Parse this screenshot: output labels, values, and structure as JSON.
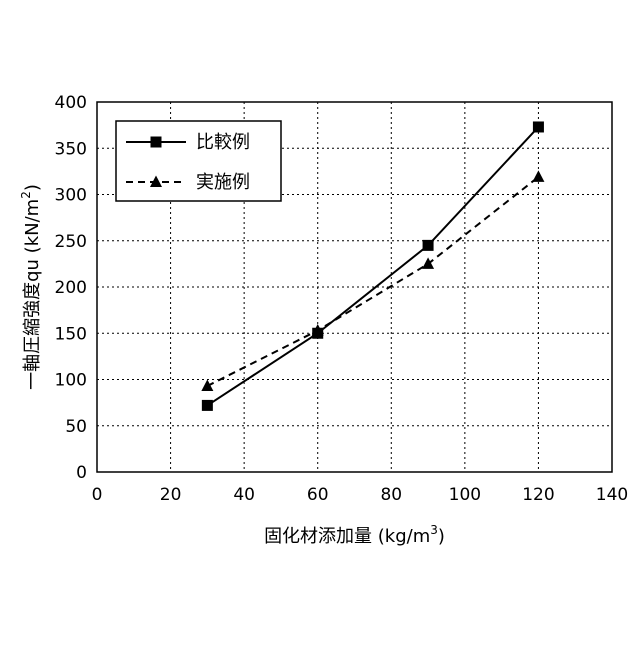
{
  "chart_data": {
    "type": "line",
    "title": "",
    "xlabel": "固化材添加量 (kg/m",
    "xlabel_sup": "3",
    "xlabel_tail": ")",
    "ylabel": "一軸圧縮強度qu (kN/m",
    "ylabel_sup": "2",
    "ylabel_tail": ")",
    "xlim": [
      0,
      140
    ],
    "ylim": [
      0,
      400
    ],
    "x_ticks": [
      0,
      20,
      40,
      60,
      80,
      100,
      120,
      140
    ],
    "y_ticks": [
      0,
      50,
      100,
      150,
      200,
      250,
      300,
      350,
      400
    ],
    "grid": true,
    "legend_position": "top-left",
    "series": [
      {
        "name": "比較例",
        "line_style": "solid",
        "marker": "square",
        "color": "#000000",
        "x": [
          30,
          60,
          90,
          120
        ],
        "y": [
          72,
          150,
          245,
          373
        ]
      },
      {
        "name": "実施例",
        "line_style": "dashed",
        "marker": "triangle",
        "color": "#000000",
        "x": [
          30,
          60,
          90,
          120
        ],
        "y": [
          93,
          153,
          225,
          319
        ]
      }
    ]
  }
}
